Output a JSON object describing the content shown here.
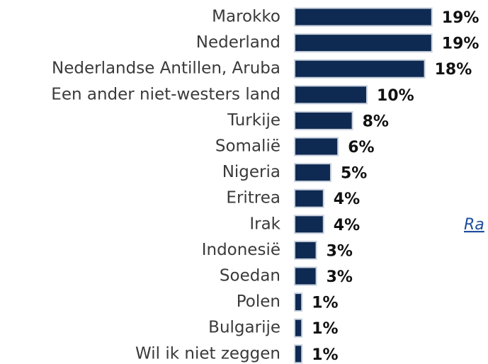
{
  "chart_data": {
    "type": "bar",
    "orientation": "horizontal",
    "categories": [
      "Marokko",
      "Nederland",
      "Nederlandse Antillen, Aruba",
      "Een ander niet-westers land",
      "Turkije",
      "Somalië",
      "Nigeria",
      "Eritrea",
      "Irak",
      "Indonesië",
      "Soedan",
      "Polen",
      "Bulgarije",
      "Wil ik niet zeggen"
    ],
    "values": [
      19,
      19,
      18,
      10,
      8,
      6,
      5,
      4,
      4,
      3,
      3,
      1,
      1,
      1
    ],
    "value_labels": [
      "19%",
      "19%",
      "18%",
      "10%",
      "8%",
      "6%",
      "5%",
      "4%",
      "4%",
      "3%",
      "3%",
      "1%",
      "1%",
      "1%"
    ],
    "color": "#0f2a52"
  },
  "link": "Ra"
}
